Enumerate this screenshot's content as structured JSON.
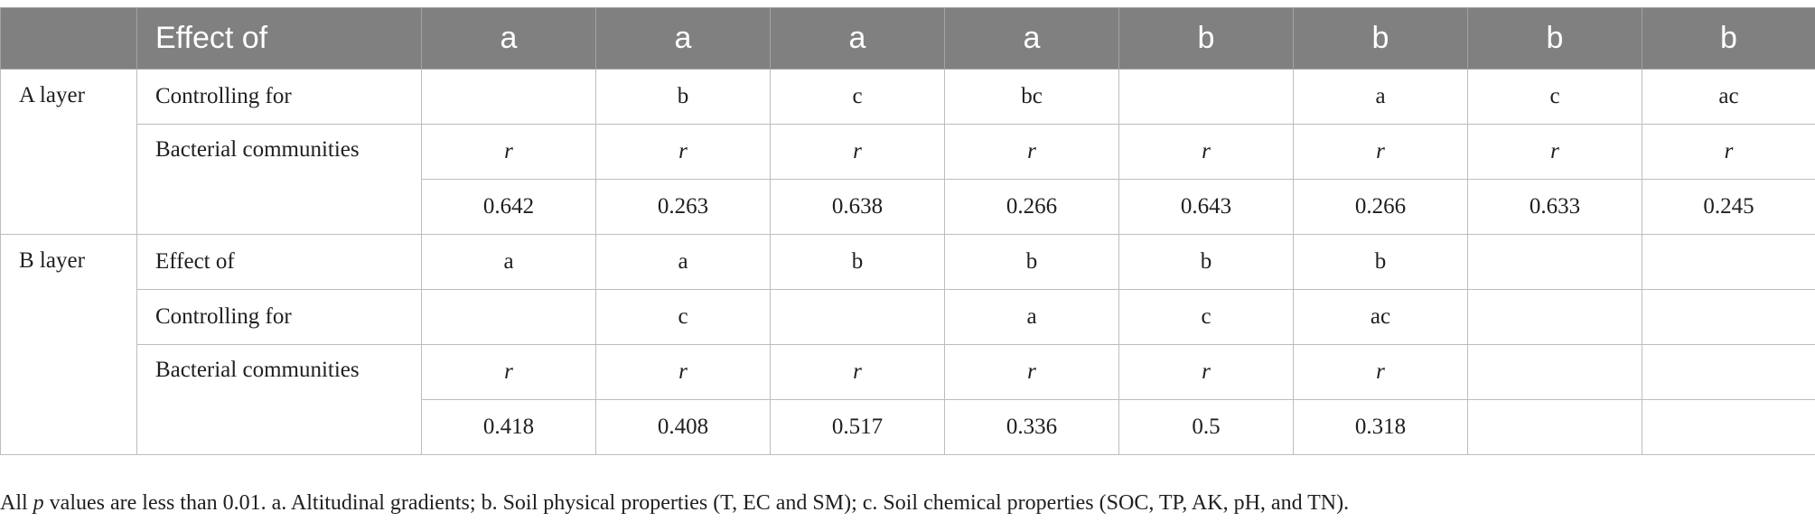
{
  "header": {
    "corner": "",
    "label": "Effect of",
    "columns": [
      "a",
      "a",
      "a",
      "a",
      "b",
      "b",
      "b",
      "b"
    ]
  },
  "a_layer": {
    "name": "A layer",
    "controlling_label": "Controlling for",
    "controlling": [
      "",
      "b",
      "c",
      "bc",
      "",
      "a",
      "c",
      "ac"
    ],
    "communities_label": "Bacterial communities",
    "r_symbol": [
      "r",
      "r",
      "r",
      "r",
      "r",
      "r",
      "r",
      "r"
    ],
    "values": [
      "0.642",
      "0.263",
      "0.638",
      "0.266",
      "0.643",
      "0.266",
      "0.633",
      "0.245"
    ]
  },
  "b_layer": {
    "name": "B layer",
    "effect_label": "Effect of",
    "effect": [
      "a",
      "a",
      "b",
      "b",
      "b",
      "b",
      "",
      ""
    ],
    "controlling_label": "Controlling for",
    "controlling": [
      "",
      "c",
      "",
      "a",
      "c",
      "ac",
      "",
      ""
    ],
    "communities_label": "Bacterial communities",
    "r_symbol": [
      "r",
      "r",
      "r",
      "r",
      "r",
      "r",
      "",
      ""
    ],
    "values": [
      "0.418",
      "0.408",
      "0.517",
      "0.336",
      "0.5",
      "0.318",
      "",
      ""
    ]
  },
  "footnote": {
    "prefix": "All ",
    "p_symbol": "p",
    "text": " values are less than 0.01. a. Altitudinal gradients; b. Soil physical properties (T, EC and SM); c. Soil chemical properties (SOC, TP, AK, pH, and TN)."
  }
}
